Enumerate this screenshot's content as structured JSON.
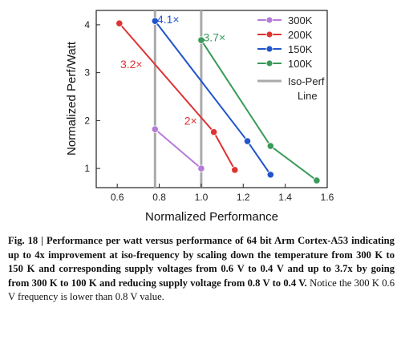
{
  "chart_data": {
    "type": "line",
    "xlabel": "Normalized Performance",
    "ylabel": "Normalized Perf/Watt",
    "xlim": [
      0.5,
      1.6
    ],
    "ylim": [
      0.6,
      4.3
    ],
    "xticks": [
      "0.6",
      "0.8",
      "1.0",
      "1.2",
      "1.4",
      "1.6"
    ],
    "yticks": [
      "1",
      "2",
      "3",
      "4"
    ],
    "legend_position": "top-right",
    "series": [
      {
        "name": "300K",
        "color": "#b57bd8",
        "x": [
          0.78,
          1.0
        ],
        "y": [
          1.82,
          1.0
        ]
      },
      {
        "name": "200K",
        "color": "#dd3333",
        "x": [
          0.61,
          1.06,
          1.16
        ],
        "y": [
          4.03,
          1.76,
          0.97
        ]
      },
      {
        "name": "150K",
        "color": "#2255cc",
        "x": [
          0.78,
          1.22,
          1.33
        ],
        "y": [
          4.08,
          1.57,
          0.87
        ]
      },
      {
        "name": "100K",
        "color": "#3a9a5a",
        "x": [
          1.0,
          1.33,
          1.55
        ],
        "y": [
          3.68,
          1.47,
          0.75
        ]
      }
    ],
    "reference": {
      "name": "Iso-Perf Line",
      "color": "#aaaaaa",
      "x": [
        0.78,
        1.0
      ]
    },
    "annotations": [
      {
        "text": "4.1×",
        "color": "#2255cc"
      },
      {
        "text": "3.7×",
        "color": "#3a9a5a"
      },
      {
        "text": "3.2×",
        "color": "#dd3333"
      },
      {
        "text": "2×",
        "color": "#dd3333"
      }
    ]
  },
  "caption": {
    "label": "Fig. 18 | ",
    "bold": "Performance per watt versus performance of 64 bit Arm Cortex-A53 indicating up to 4x improvement at iso-frequency by scaling down the temperature from 300 K to 150 K and corresponding supply voltages from 0.6 V to 0.4 V and up to 3.7x by going from 300 K to 100 K and reducing supply voltage from 0.8 V to 0.4 V.",
    "normal": " Notice the 300 K 0.6 V frequency is lower than 0.8 V value."
  }
}
